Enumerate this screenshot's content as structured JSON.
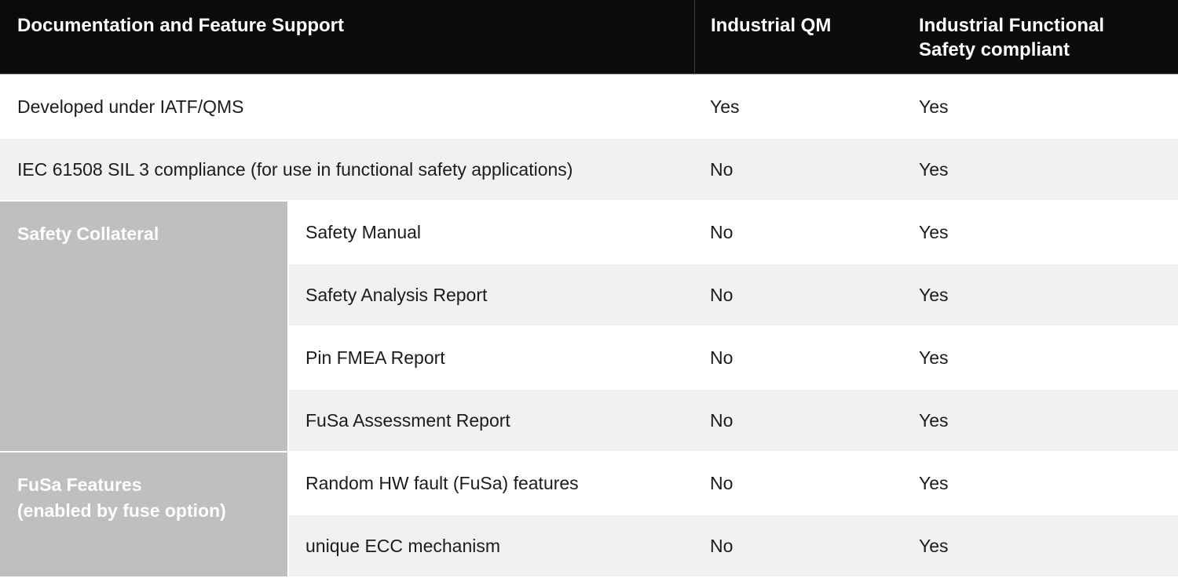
{
  "table": {
    "header": {
      "col1": "Documentation and Feature Support",
      "col2": "Industrial QM",
      "col3": "Industrial Functional Safety compliant"
    },
    "rows": [
      {
        "label": "Developed under IATF/QMS",
        "qm": "Yes",
        "fusa": "Yes"
      },
      {
        "label": "IEC 61508 SIL 3 compliance (for use in functional safety applications)",
        "qm": "No",
        "fusa": "Yes"
      }
    ],
    "sections": [
      {
        "title": "Safety Collateral",
        "title_line1": "Safety Collateral",
        "title_line2": "",
        "rows": [
          {
            "label": "Safety Manual",
            "qm": "No",
            "fusa": "Yes"
          },
          {
            "label": "Safety Analysis Report",
            "qm": "No",
            "fusa": "Yes"
          },
          {
            "label": "Pin FMEA Report",
            "qm": "No",
            "fusa": "Yes"
          },
          {
            "label": "FuSa Assessment Report",
            "qm": "No",
            "fusa": "Yes"
          }
        ]
      },
      {
        "title": "FuSa Features (enabled by fuse option)",
        "title_line1": "FuSa Features",
        "title_line2": "(enabled by fuse option)",
        "rows": [
          {
            "label": "Random HW fault (FuSa) features",
            "qm": "No",
            "fusa": "Yes"
          },
          {
            "label": "unique ECC mechanism",
            "qm": "No",
            "fusa": "Yes"
          }
        ]
      }
    ],
    "colors": {
      "header_bg": "#0b0b0b",
      "header_text": "#ffffff",
      "header_divider": "#3c3c3c",
      "row_alt_bg": "#f1f1f1",
      "section_bg": "#bfbfbf",
      "section_text": "#ffffff",
      "body_text": "#1c1c1c"
    }
  }
}
